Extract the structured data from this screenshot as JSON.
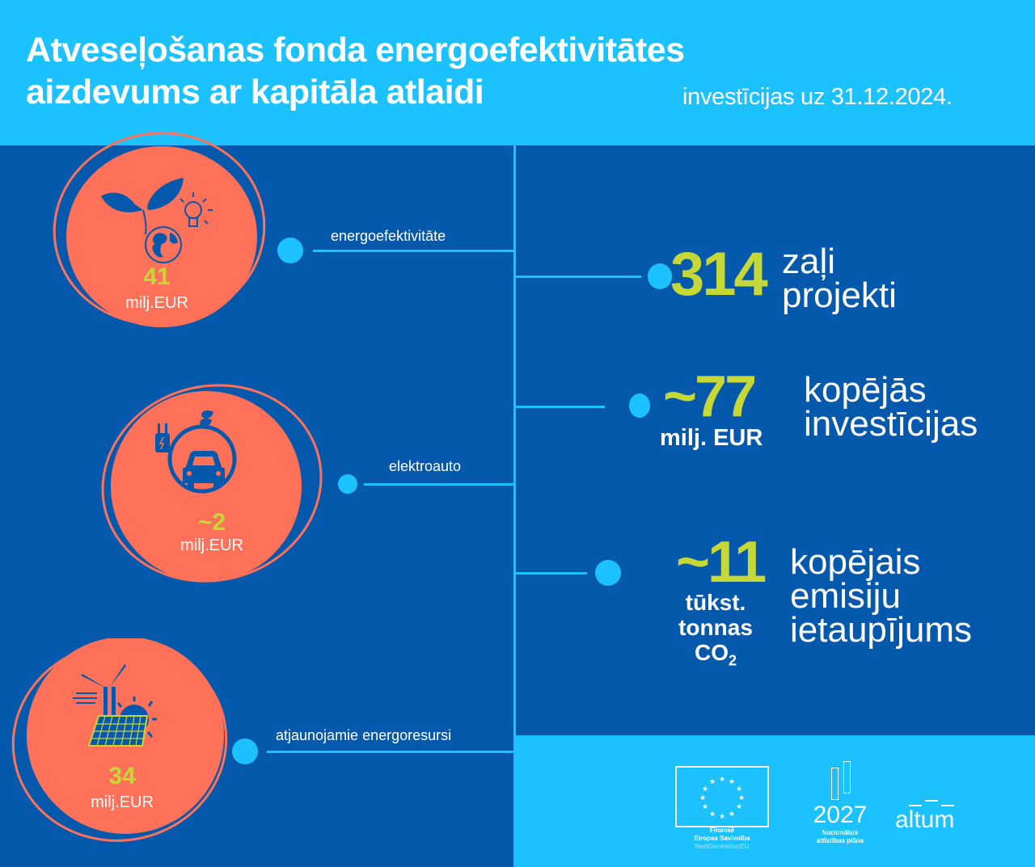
{
  "header": {
    "title_line1": "Atveseļošanas fonda energoefektivitātes",
    "title_line2": "aizdevums ar kapitāla atlaidi",
    "subtitle": "investīcijas uz 31.12.2024."
  },
  "categories": [
    {
      "label": "energoefektivitāte",
      "amount": "41",
      "unit": "milj.EUR",
      "icon": "plant-globe-bulb-icon"
    },
    {
      "label": "elektroauto",
      "amount": "~2",
      "unit": "milj.EUR",
      "icon": "electric-car-plug-icon"
    },
    {
      "label": "atjaunojamie energoresursi",
      "amount": "34",
      "unit": "milj.EUR",
      "icon": "wind-solar-icon"
    }
  ],
  "stats": [
    {
      "value": "314",
      "unit": "",
      "desc_line1": "zaļi",
      "desc_line2": "projekti"
    },
    {
      "value": "~77",
      "unit": "milj. EUR",
      "desc_line1": "kopējās",
      "desc_line2": "investīcijas"
    },
    {
      "value": "~11",
      "unit_line1": "tūkst.",
      "unit_line2": "tonnas",
      "unit_line3": "CO",
      "unit_sub": "2",
      "desc_line1": "kopējais",
      "desc_line2": "emisiju",
      "desc_line3": "ietaupījums"
    }
  ],
  "footer": {
    "eu_line1": "Finansē",
    "eu_line2": "Eiropas Savienība",
    "eu_line3": "NextGenerationEU",
    "nap_year": "2027",
    "nap_line1": "Nacionālais",
    "nap_line2": "attīstības plāns",
    "altum": "altum"
  },
  "colors": {
    "header_bg": "#1CC2FF",
    "body_bg": "#0559AC",
    "coral": "#FF7158",
    "lime": "#C6D836",
    "white": "#FFFFFF"
  }
}
